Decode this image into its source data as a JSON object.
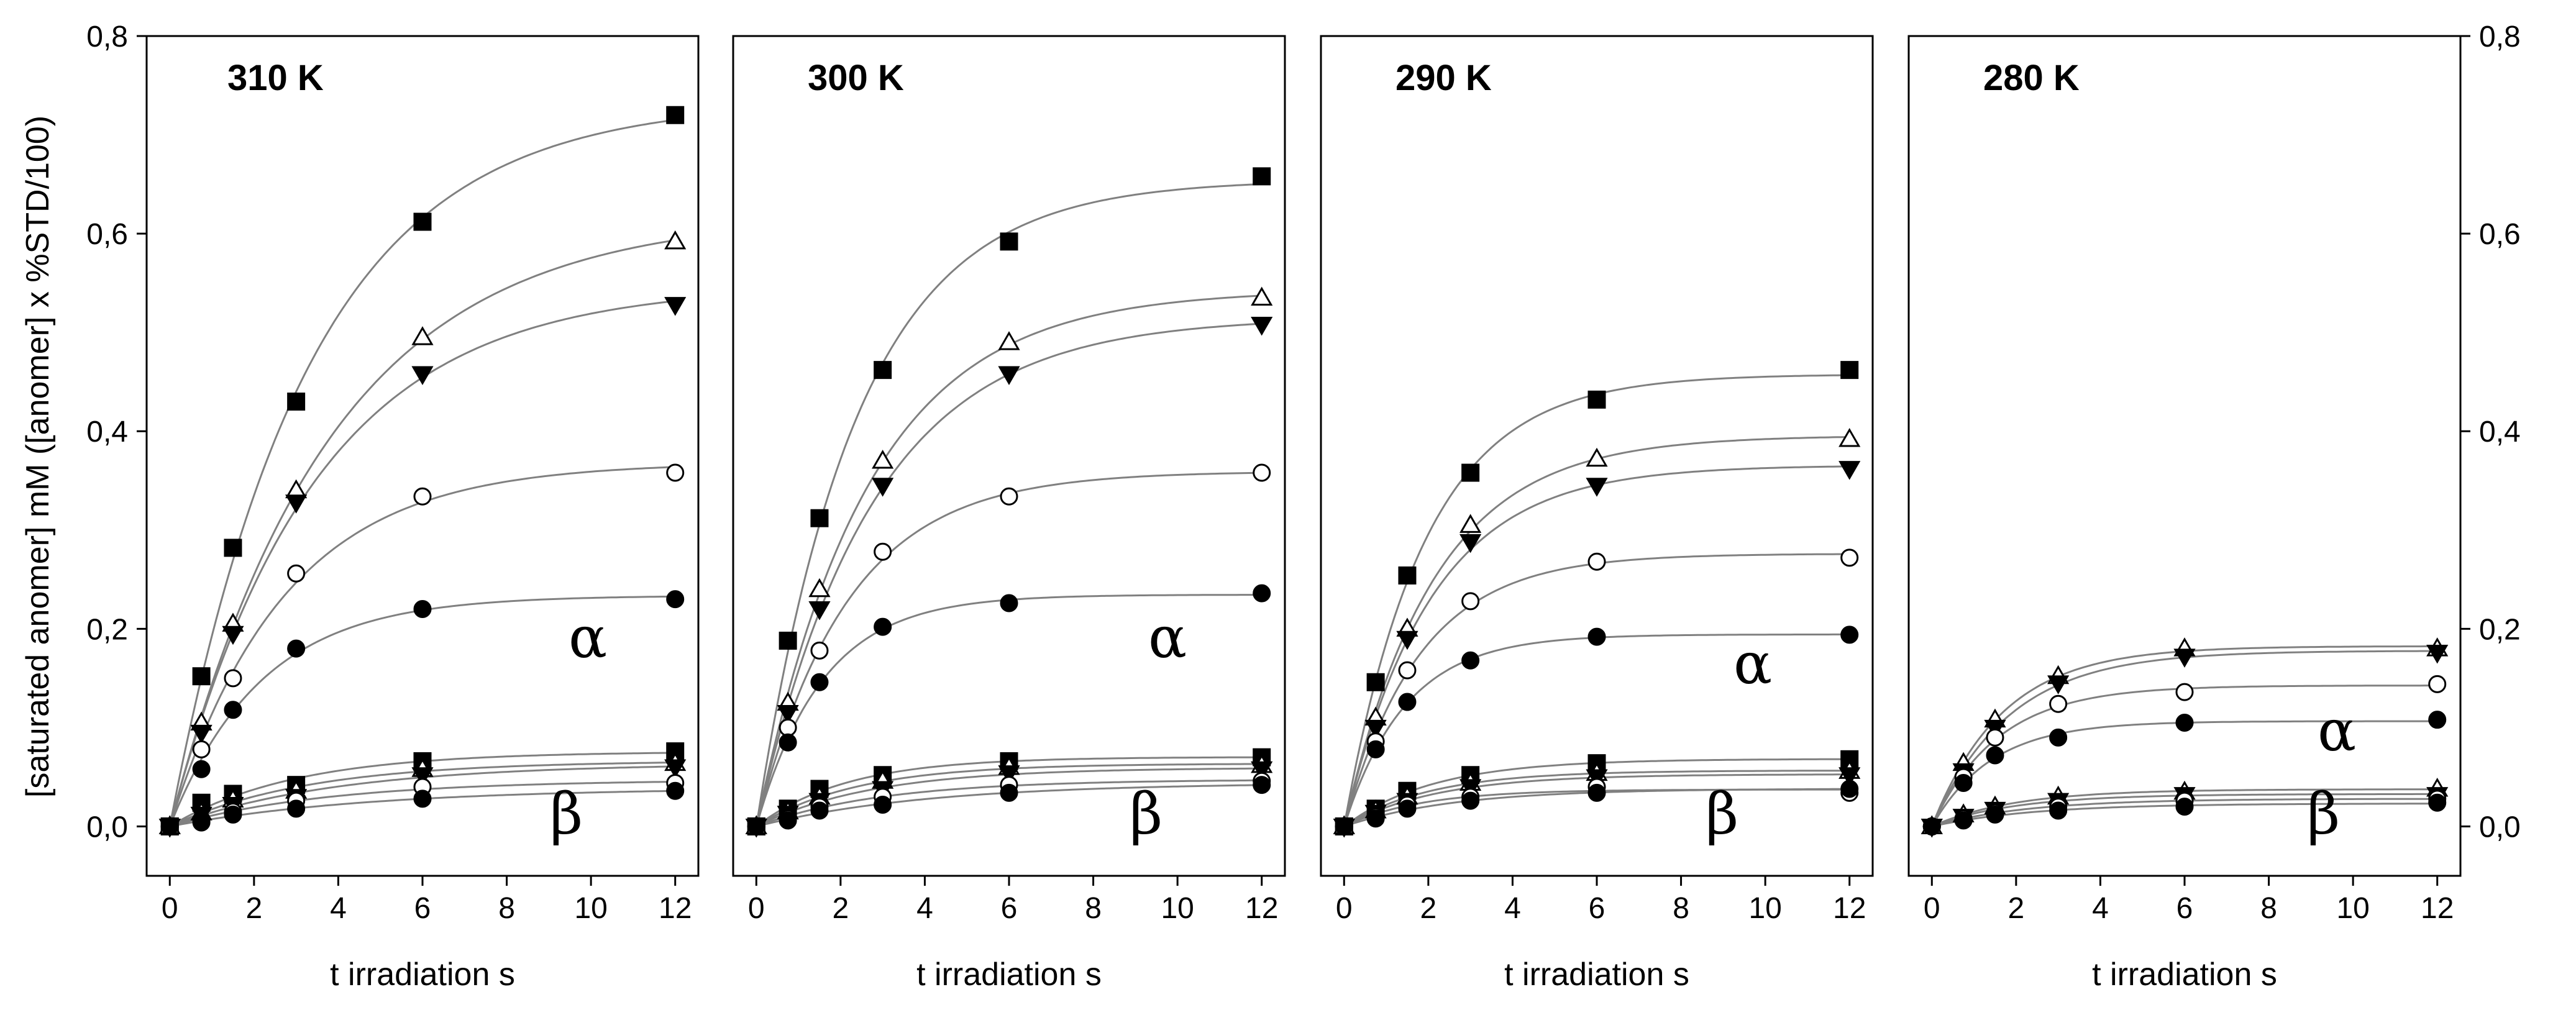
{
  "chart_data": [
    {
      "type": "scatter",
      "panel": "310 K",
      "title": "310 K",
      "xlabel": "t irradiation s",
      "ylabel": "[saturated anomer] mM ([anomer] x %STD/100)",
      "x_ticks": [
        "0",
        "2",
        "4",
        "6",
        "8",
        "10",
        "12"
      ],
      "y_ticks": [
        "0,0",
        "0,2",
        "0,4",
        "0,6",
        "0,8"
      ],
      "xlim": [
        -0.55,
        12.55
      ],
      "ylim": [
        -0.05,
        0.8
      ],
      "annotations": [
        "α",
        "β"
      ],
      "x": [
        0,
        0.75,
        1.5,
        3,
        6,
        12
      ],
      "series": [
        {
          "group": "α",
          "marker": "filled-square",
          "values": [
            0,
            0.152,
            0.282,
            0.43,
            0.612,
            0.72
          ]
        },
        {
          "group": "α",
          "marker": "open-triangle-up",
          "values": [
            0,
            0.105,
            0.205,
            0.34,
            0.495,
            0.592
          ]
        },
        {
          "group": "α",
          "marker": "filled-triangle-down",
          "values": [
            0,
            0.095,
            0.195,
            0.328,
            0.458,
            0.528
          ]
        },
        {
          "group": "α",
          "marker": "open-circle",
          "values": [
            0,
            0.078,
            0.15,
            0.256,
            0.334,
            0.358
          ]
        },
        {
          "group": "α",
          "marker": "filled-circle",
          "values": [
            0,
            0.058,
            0.118,
            0.18,
            0.22,
            0.23
          ]
        },
        {
          "group": "β",
          "marker": "filled-square",
          "values": [
            0,
            0.024,
            0.033,
            0.042,
            0.066,
            0.076
          ]
        },
        {
          "group": "β",
          "marker": "open-triangle-up",
          "values": [
            0,
            0.014,
            0.027,
            0.036,
            0.058,
            0.064
          ]
        },
        {
          "group": "β",
          "marker": "filled-triangle-down",
          "values": [
            0,
            0.012,
            0.022,
            0.03,
            0.052,
            0.06
          ]
        },
        {
          "group": "β",
          "marker": "open-circle",
          "values": [
            0,
            0.005,
            0.015,
            0.026,
            0.04,
            0.044
          ]
        },
        {
          "group": "β",
          "marker": "filled-circle",
          "values": [
            0,
            0.004,
            0.012,
            0.018,
            0.028,
            0.036
          ]
        }
      ]
    },
    {
      "type": "scatter",
      "panel": "300 K",
      "title": "300 K",
      "xlabel": "t irradiation s",
      "x_ticks": [
        "0",
        "2",
        "4",
        "6",
        "8",
        "10",
        "12"
      ],
      "xlim": [
        -0.55,
        12.55
      ],
      "ylim": [
        -0.05,
        0.8
      ],
      "annotations": [
        "α",
        "β"
      ],
      "x": [
        0,
        0.75,
        1.5,
        3,
        6,
        12
      ],
      "series": [
        {
          "group": "α",
          "marker": "filled-square",
          "values": [
            0,
            0.188,
            0.312,
            0.462,
            0.592,
            0.658
          ]
        },
        {
          "group": "α",
          "marker": "open-triangle-up",
          "values": [
            0,
            0.125,
            0.24,
            0.37,
            0.49,
            0.535
          ]
        },
        {
          "group": "α",
          "marker": "filled-triangle-down",
          "values": [
            0,
            0.115,
            0.22,
            0.345,
            0.458,
            0.508
          ]
        },
        {
          "group": "α",
          "marker": "open-circle",
          "values": [
            0,
            0.1,
            0.178,
            0.278,
            0.334,
            0.358
          ]
        },
        {
          "group": "α",
          "marker": "filled-circle",
          "values": [
            0,
            0.085,
            0.146,
            0.202,
            0.226,
            0.236
          ]
        },
        {
          "group": "β",
          "marker": "filled-square",
          "values": [
            0,
            0.018,
            0.038,
            0.052,
            0.066,
            0.07
          ]
        },
        {
          "group": "β",
          "marker": "open-triangle-up",
          "values": [
            0,
            0.015,
            0.03,
            0.046,
            0.06,
            0.062
          ]
        },
        {
          "group": "β",
          "marker": "filled-triangle-down",
          "values": [
            0,
            0.013,
            0.026,
            0.038,
            0.054,
            0.058
          ]
        },
        {
          "group": "β",
          "marker": "open-circle",
          "values": [
            0,
            0.008,
            0.02,
            0.03,
            0.042,
            0.046
          ]
        },
        {
          "group": "β",
          "marker": "filled-circle",
          "values": [
            0,
            0.006,
            0.016,
            0.022,
            0.034,
            0.042
          ]
        }
      ]
    },
    {
      "type": "scatter",
      "panel": "290 K",
      "title": "290 K",
      "xlabel": "t irradiation s",
      "x_ticks": [
        "0",
        "2",
        "4",
        "6",
        "8",
        "10",
        "12"
      ],
      "xlim": [
        -0.55,
        12.55
      ],
      "ylim": [
        -0.05,
        0.8
      ],
      "annotations": [
        "α",
        "β"
      ],
      "x": [
        0,
        0.75,
        1.5,
        3,
        6,
        12
      ],
      "series": [
        {
          "group": "α",
          "marker": "filled-square",
          "values": [
            0,
            0.146,
            0.254,
            0.358,
            0.432,
            0.462
          ]
        },
        {
          "group": "α",
          "marker": "open-triangle-up",
          "values": [
            0,
            0.11,
            0.2,
            0.305,
            0.372,
            0.392
          ]
        },
        {
          "group": "α",
          "marker": "filled-triangle-down",
          "values": [
            0,
            0.1,
            0.19,
            0.288,
            0.345,
            0.362
          ]
        },
        {
          "group": "α",
          "marker": "open-circle",
          "values": [
            0,
            0.086,
            0.158,
            0.228,
            0.268,
            0.272
          ]
        },
        {
          "group": "α",
          "marker": "filled-circle",
          "values": [
            0,
            0.078,
            0.126,
            0.168,
            0.192,
            0.194
          ]
        },
        {
          "group": "β",
          "marker": "filled-square",
          "values": [
            0,
            0.018,
            0.036,
            0.052,
            0.064,
            0.068
          ]
        },
        {
          "group": "β",
          "marker": "open-triangle-up",
          "values": [
            0,
            0.016,
            0.03,
            0.044,
            0.054,
            0.056
          ]
        },
        {
          "group": "β",
          "marker": "filled-triangle-down",
          "values": [
            0,
            0.014,
            0.026,
            0.04,
            0.05,
            0.052
          ]
        },
        {
          "group": "β",
          "marker": "open-circle",
          "values": [
            0,
            0.01,
            0.022,
            0.03,
            0.04,
            0.034
          ]
        },
        {
          "group": "β",
          "marker": "filled-circle",
          "values": [
            0,
            0.008,
            0.018,
            0.026,
            0.034,
            0.038
          ]
        }
      ]
    },
    {
      "type": "scatter",
      "panel": "280 K",
      "title": "280 K",
      "xlabel": "t irradiation s",
      "x_ticks": [
        "0",
        "2",
        "4",
        "6",
        "8",
        "10",
        "12"
      ],
      "y_ticks": [
        "0,0",
        "0,2",
        "0,4",
        "0,6",
        "0,8"
      ],
      "xlim": [
        -0.55,
        12.55
      ],
      "ylim": [
        -0.05,
        0.8
      ],
      "annotations": [
        "α",
        "β"
      ],
      "x": [
        0,
        0.75,
        1.5,
        3,
        6,
        12
      ],
      "series": [
        {
          "group": "α",
          "marker": "open-triangle-up",
          "values": [
            0,
            0.064,
            0.108,
            0.152,
            0.18,
            0.18
          ]
        },
        {
          "group": "α",
          "marker": "filled-triangle-down",
          "values": [
            0,
            0.056,
            0.1,
            0.145,
            0.172,
            0.176
          ]
        },
        {
          "group": "α",
          "marker": "open-circle",
          "values": [
            0,
            0.05,
            0.09,
            0.124,
            0.136,
            0.144
          ]
        },
        {
          "group": "α",
          "marker": "filled-circle",
          "values": [
            0,
            0.044,
            0.072,
            0.09,
            0.105,
            0.108
          ]
        },
        {
          "group": "β",
          "marker": "open-triangle-up",
          "values": [
            0,
            0.012,
            0.02,
            0.03,
            0.035,
            0.038
          ]
        },
        {
          "group": "β",
          "marker": "filled-triangle-down",
          "values": [
            0,
            0.01,
            0.017,
            0.026,
            0.032,
            0.032
          ]
        },
        {
          "group": "β",
          "marker": "open-circle",
          "values": [
            0,
            0.008,
            0.014,
            0.02,
            0.026,
            0.028
          ]
        },
        {
          "group": "β",
          "marker": "filled-circle",
          "values": [
            0,
            0.006,
            0.012,
            0.016,
            0.02,
            0.024
          ]
        }
      ]
    }
  ]
}
